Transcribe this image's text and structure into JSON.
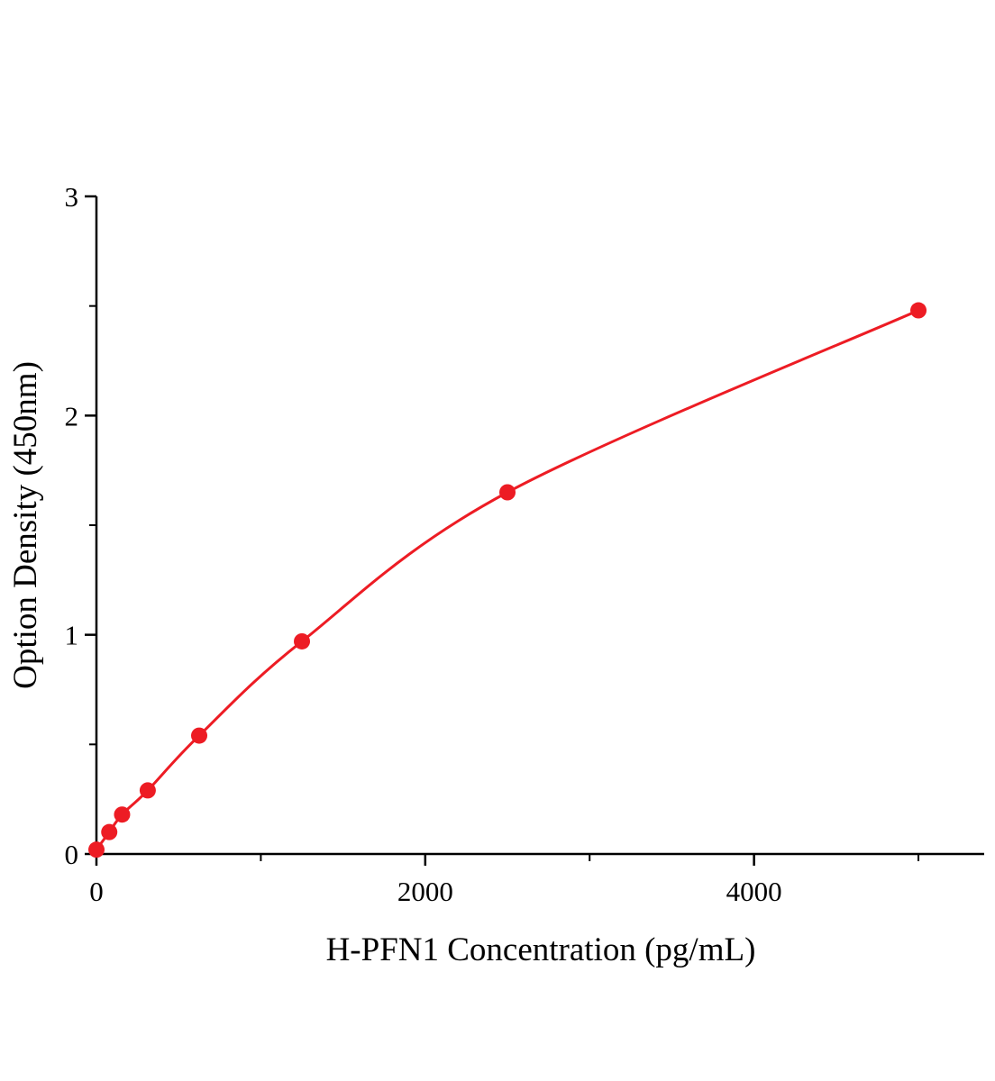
{
  "chart_data": {
    "type": "line",
    "title": "",
    "xlabel": "H-PFN1 Concentration (pg/mL)",
    "ylabel": "Option Density (450nm)",
    "x": [
      0,
      78,
      156,
      312,
      625,
      1250,
      2500,
      5000
    ],
    "y": [
      0.02,
      0.1,
      0.18,
      0.29,
      0.54,
      0.97,
      1.65,
      2.48
    ],
    "xlim": [
      0,
      5400
    ],
    "ylim": [
      0,
      3
    ],
    "x_major_ticks": [
      0,
      2000,
      4000
    ],
    "x_minor_ticks": [
      1000,
      3000,
      5000
    ],
    "y_major_ticks": [
      0,
      1,
      2,
      3
    ],
    "y_minor_ticks": [
      0.5,
      1.5,
      2.5
    ],
    "line_color": "#ed1c24",
    "marker_color": "#ed1c24",
    "marker_size": 9,
    "line_width": 3,
    "axis_color": "#000000",
    "axis_width": 2.5,
    "grid": false,
    "legend": null
  }
}
